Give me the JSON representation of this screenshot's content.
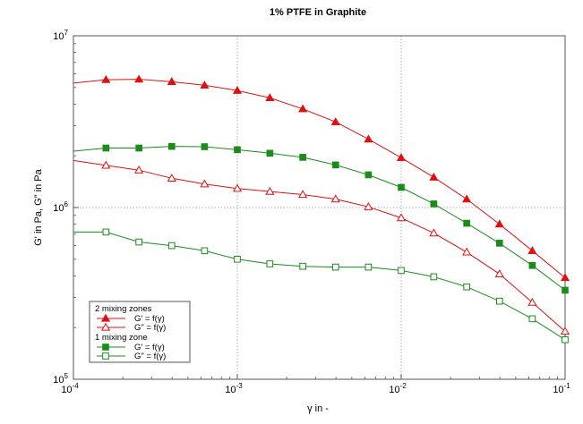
{
  "chart_data": {
    "type": "line",
    "title": "1% PTFE in Graphite",
    "xlabel": "γ in -",
    "ylabel": "G' in Pa, G\" in Pa",
    "xscale": "log",
    "yscale": "log",
    "xlim": [
      0.0001,
      0.1
    ],
    "ylim": [
      100000,
      10000000
    ],
    "grid": true,
    "legend_position": "bottom-left",
    "x_ticks": [
      {
        "base": "10",
        "exp": "-4",
        "value": 0.0001
      },
      {
        "base": "10",
        "exp": "-3",
        "value": 0.001
      },
      {
        "base": "10",
        "exp": "-2",
        "value": 0.01
      },
      {
        "base": "10",
        "exp": "-1",
        "value": 0.1
      }
    ],
    "y_ticks": [
      {
        "base": "10",
        "exp": "5",
        "value": 100000
      },
      {
        "base": "10",
        "exp": "6",
        "value": 1000000
      },
      {
        "base": "10",
        "exp": "7",
        "value": 10000000
      }
    ],
    "legend_groups": [
      {
        "title": "2 mixing zones",
        "series": [
          0,
          1
        ]
      },
      {
        "title": "1 mixing zone",
        "series": [
          2,
          3
        ]
      }
    ],
    "series": [
      {
        "name": "G' = f(γ)",
        "color": "#e01010",
        "marker": "triangle",
        "filled": true,
        "x": [
          0.0001,
          0.000158,
          0.000251,
          0.000398,
          0.000631,
          0.001,
          0.00158,
          0.00251,
          0.00398,
          0.00631,
          0.01,
          0.0158,
          0.0251,
          0.0398,
          0.0631,
          0.1
        ],
        "y": [
          5300000,
          5550000,
          5580000,
          5400000,
          5150000,
          4800000,
          4350000,
          3750000,
          3150000,
          2500000,
          1950000,
          1500000,
          1120000,
          800000,
          560000,
          390000
        ],
        "marker_from": 1
      },
      {
        "name": "G\" = f(γ)",
        "color": "#e01010",
        "marker": "triangle",
        "filled": false,
        "x": [
          0.0001,
          0.000158,
          0.000251,
          0.000398,
          0.000631,
          0.001,
          0.00158,
          0.00251,
          0.00398,
          0.00631,
          0.01,
          0.0158,
          0.0251,
          0.0398,
          0.0631,
          0.1
        ],
        "y": [
          1880000,
          1760000,
          1650000,
          1480000,
          1370000,
          1290000,
          1240000,
          1190000,
          1120000,
          1010000,
          870000,
          710000,
          550000,
          410000,
          280000,
          190000
        ],
        "marker_from": 1
      },
      {
        "name": "G' = f(γ)",
        "color": "#1a8c1a",
        "marker": "square",
        "filled": true,
        "x": [
          0.0001,
          0.000158,
          0.000251,
          0.000398,
          0.000631,
          0.001,
          0.00158,
          0.00251,
          0.00398,
          0.00631,
          0.01,
          0.0158,
          0.0251,
          0.0398,
          0.0631,
          0.1
        ],
        "y": [
          2130000,
          2220000,
          2220000,
          2270000,
          2260000,
          2170000,
          2070000,
          1960000,
          1770000,
          1550000,
          1310000,
          1050000,
          810000,
          620000,
          460000,
          330000
        ],
        "marker_from": 1
      },
      {
        "name": "G\" = f(γ)",
        "color": "#1a8c1a",
        "marker": "square",
        "filled": false,
        "x": [
          0.0001,
          0.000158,
          0.000251,
          0.000398,
          0.000631,
          0.001,
          0.00158,
          0.00251,
          0.00398,
          0.00631,
          0.01,
          0.0158,
          0.0251,
          0.0398,
          0.0631,
          0.1
        ],
        "y": [
          720000,
          720000,
          630000,
          600000,
          560000,
          500000,
          470000,
          455000,
          450000,
          450000,
          430000,
          395000,
          345000,
          285000,
          225000,
          170000
        ],
        "marker_from": 1
      }
    ]
  }
}
